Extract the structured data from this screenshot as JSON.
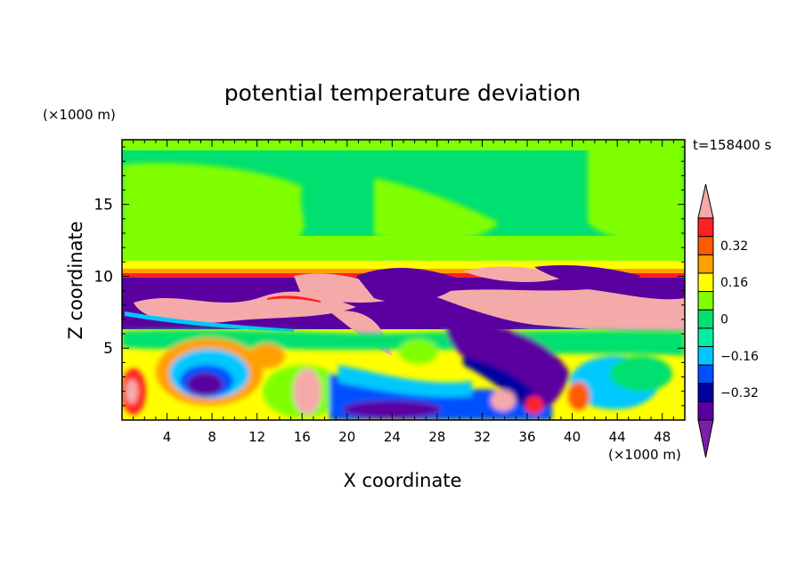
{
  "chart_data": {
    "type": "heatmap",
    "title": "potential temperature deviation",
    "time_label": "t=158400 s",
    "xlabel": "X coordinate",
    "ylabel": "Z coordinate",
    "x_unit": "(×1000 m)",
    "y_unit": "(×1000 m)",
    "xlim": [
      0,
      50
    ],
    "ylim": [
      0,
      19.5
    ],
    "x_ticks": [
      4,
      8,
      12,
      16,
      20,
      24,
      28,
      32,
      36,
      40,
      44,
      48
    ],
    "y_ticks": [
      5,
      10,
      15
    ],
    "colorbar": {
      "levels": [
        -0.4,
        -0.32,
        -0.24,
        -0.16,
        -0.08,
        0,
        0.08,
        0.16,
        0.24,
        0.32,
        0.4
      ],
      "tick_labels": [
        "0.32",
        "0.16",
        "0",
        "−0.16",
        "−0.32"
      ],
      "tick_values": [
        0.32,
        0.16,
        0,
        -0.16,
        -0.32
      ],
      "colors": [
        "#7a1fa8",
        "#5a00a0",
        "#0000a0",
        "#0050ff",
        "#00c8ff",
        "#00f0a0",
        "#00e070",
        "#80ff00",
        "#ffff00",
        "#ffa000",
        "#ff5a00",
        "#ff2020",
        "#f5aaaa"
      ]
    }
  }
}
